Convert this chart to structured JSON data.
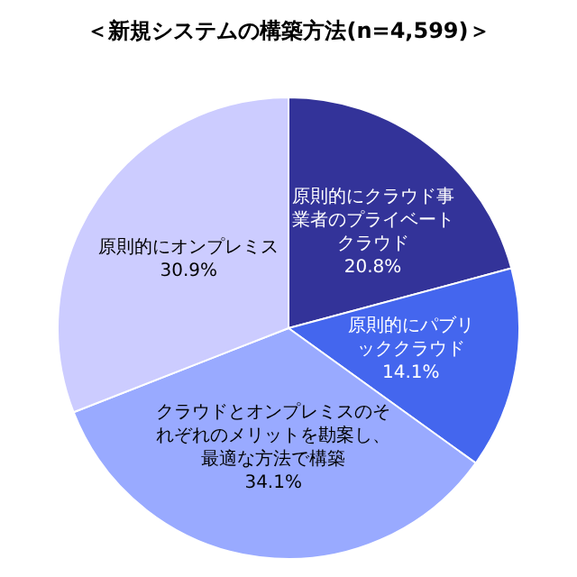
{
  "chart_data": {
    "type": "pie",
    "title": "＜新規システムの構築方法(n=4,599)＞",
    "categories": [
      "原則的にクラウド事業者のプライベートクラウド",
      "原則的にパブリッククラウド",
      "クラウドとオンプレミスのそれぞれのメリットを勘案し、最適な方法で構築",
      "原則的にオンプレミス"
    ],
    "values": [
      20.8,
      14.1,
      34.1,
      30.9
    ],
    "value_labels": [
      "20.8%",
      "14.1%",
      "34.1%",
      "30.9%"
    ],
    "colors": [
      "#333399",
      "#4466ee",
      "#99aaff",
      "#ccccff"
    ],
    "legend": false
  }
}
